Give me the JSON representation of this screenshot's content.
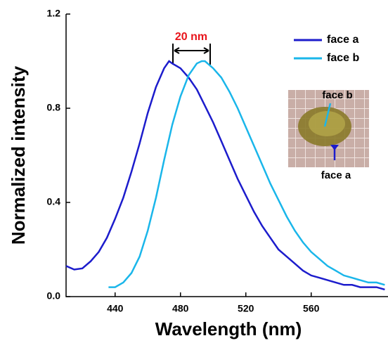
{
  "chart_data": {
    "type": "line",
    "xlabel": "Wavelength (nm)",
    "ylabel": "Normalized intensity",
    "xlim": [
      410,
      607
    ],
    "ylim": [
      0,
      1.2
    ],
    "xticks": [
      440,
      480,
      520,
      560
    ],
    "yticks": [
      {
        "value": 0,
        "label": "0.0"
      },
      0.4,
      0.8,
      1.2
    ],
    "annotation": "20 nm",
    "inset_labels": [
      "face b",
      "face a"
    ],
    "series": [
      {
        "name": "face a",
        "color": "#1c1ccc",
        "x": [
          410,
          415,
          420,
          425,
          430,
          435,
          440,
          445,
          450,
          455,
          460,
          465,
          470,
          473,
          475,
          480,
          485,
          490,
          495,
          500,
          505,
          510,
          515,
          520,
          525,
          530,
          535,
          540,
          545,
          550,
          555,
          560,
          565,
          570,
          575,
          580,
          585,
          590,
          595,
          600,
          605
        ],
        "values": [
          0.13,
          0.115,
          0.12,
          0.15,
          0.19,
          0.25,
          0.33,
          0.42,
          0.53,
          0.65,
          0.78,
          0.89,
          0.97,
          1.0,
          0.99,
          0.97,
          0.93,
          0.88,
          0.81,
          0.74,
          0.66,
          0.58,
          0.5,
          0.43,
          0.36,
          0.3,
          0.25,
          0.2,
          0.17,
          0.14,
          0.11,
          0.09,
          0.08,
          0.07,
          0.06,
          0.05,
          0.05,
          0.04,
          0.04,
          0.04,
          0.03
        ]
      },
      {
        "name": "face b",
        "color": "#1ab6ea",
        "x": [
          436,
          440,
          445,
          450,
          455,
          460,
          465,
          470,
          475,
          480,
          485,
          490,
          493,
          495,
          500,
          505,
          510,
          515,
          520,
          525,
          530,
          535,
          540,
          545,
          550,
          555,
          560,
          565,
          570,
          575,
          580,
          585,
          590,
          595,
          600,
          605
        ],
        "values": [
          0.04,
          0.04,
          0.06,
          0.1,
          0.17,
          0.28,
          0.42,
          0.58,
          0.73,
          0.85,
          0.94,
          0.99,
          1.0,
          1.0,
          0.97,
          0.93,
          0.87,
          0.8,
          0.72,
          0.64,
          0.56,
          0.48,
          0.41,
          0.34,
          0.28,
          0.23,
          0.19,
          0.16,
          0.13,
          0.11,
          0.09,
          0.08,
          0.07,
          0.06,
          0.06,
          0.05
        ]
      }
    ]
  }
}
